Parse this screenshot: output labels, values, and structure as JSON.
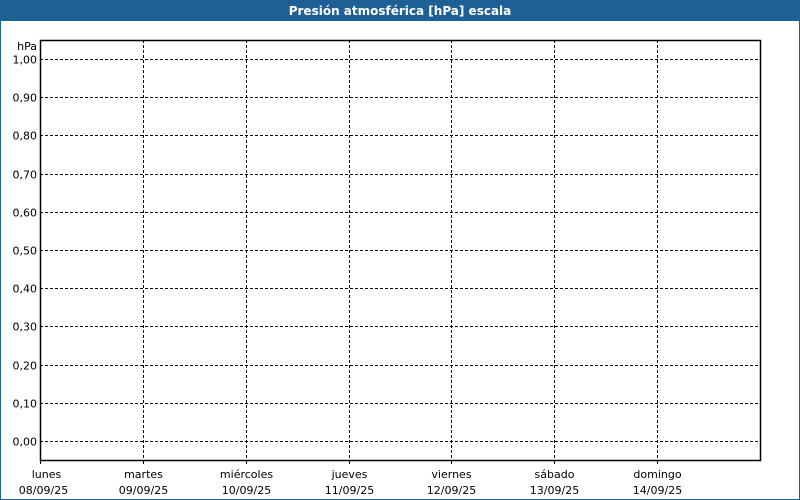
{
  "title": "Presión atmosférica [hPa] escala",
  "chart_data": {
    "type": "line",
    "title": "Presión atmosférica [hPa] escala",
    "ylabel": "hPa",
    "ylim": [
      -0.05,
      1.05
    ],
    "yticks": [
      "0,00",
      "0,10",
      "0,20",
      "0,30",
      "0,40",
      "0,50",
      "0,60",
      "0,70",
      "0,80",
      "0,90",
      "1,00"
    ],
    "ytick_values": [
      0,
      0.1,
      0.2,
      0.3,
      0.4,
      0.5,
      0.6,
      0.7,
      0.8,
      0.9,
      1.0
    ],
    "xticks": [
      {
        "day": "lunes",
        "date": "08/09/25"
      },
      {
        "day": "martes",
        "date": "09/09/25"
      },
      {
        "day": "miércoles",
        "date": "10/09/25"
      },
      {
        "day": "jueves",
        "date": "11/09/25"
      },
      {
        "day": "viernes",
        "date": "12/09/25"
      },
      {
        "day": "sábado",
        "date": "13/09/25"
      },
      {
        "day": "domingo",
        "date": "14/09/25"
      }
    ],
    "xlim": [
      "08/09/25",
      "15/09/25"
    ],
    "grid": true,
    "series": []
  }
}
